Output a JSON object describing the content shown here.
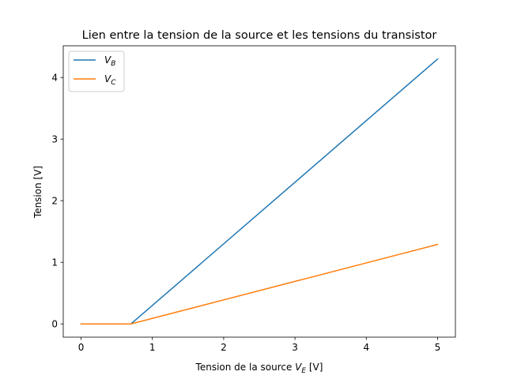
{
  "chart_data": {
    "type": "line",
    "title": "Lien entre la tension de la source et les tensions du transistor",
    "xlabel": {
      "prefix": "Tension de la source ",
      "var": "V",
      "sub": "E",
      "suffix": " [V]"
    },
    "ylabel": "Tension [V]",
    "xlim": [
      -0.25,
      5.25
    ],
    "ylim": [
      -0.215,
      4.515
    ],
    "xticks": [
      0,
      1,
      2,
      3,
      4,
      5
    ],
    "yticks": [
      0,
      1,
      2,
      3,
      4
    ],
    "grid": false,
    "legend_position": "top-left",
    "series": [
      {
        "name": {
          "var": "V",
          "sub": "B"
        },
        "color": "#1f77b4",
        "x": [
          0,
          0.7,
          5
        ],
        "y": [
          0,
          0,
          4.3
        ]
      },
      {
        "name": {
          "var": "V",
          "sub": "C"
        },
        "color": "#ff7f0e",
        "x": [
          0,
          0.7,
          5
        ],
        "y": [
          0,
          0,
          1.29
        ]
      }
    ]
  }
}
